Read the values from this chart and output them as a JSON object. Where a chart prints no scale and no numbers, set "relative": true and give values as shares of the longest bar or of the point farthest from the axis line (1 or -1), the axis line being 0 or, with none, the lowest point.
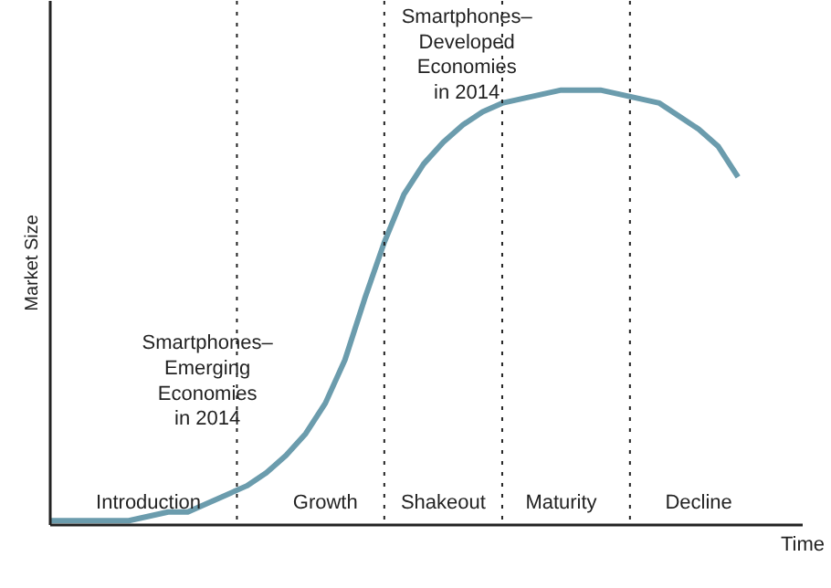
{
  "chart_data": {
    "type": "line",
    "relative": true,
    "xlabel": "Time",
    "ylabel": "Market Size",
    "line_style": "solid",
    "categories": [
      null,
      null,
      null,
      null,
      null,
      "Introduction",
      null,
      null,
      null,
      null,
      null,
      null,
      null,
      null,
      "Growth",
      null,
      null,
      null,
      null,
      null,
      "Shakeout",
      null,
      null,
      null,
      null,
      null,
      "Maturity",
      null,
      null,
      null,
      null,
      null,
      null,
      "Decline",
      null,
      null
    ],
    "series": [
      {
        "color": "#6b9cad",
        "values": [
          0.01,
          0.01,
          0.01,
          0.01,
          0.01,
          0.02,
          0.03,
          0.03,
          0.05,
          0.07,
          0.09,
          0.12,
          0.16,
          0.21,
          0.28,
          0.38,
          0.52,
          0.65,
          0.76,
          0.83,
          0.88,
          0.92,
          0.95,
          0.97,
          0.98,
          0.99,
          1.0,
          1.0,
          1.0,
          0.99,
          0.98,
          0.97,
          0.94,
          0.91,
          0.87,
          0.8
        ]
      }
    ],
    "annotations": [
      "Smartphones–\nEmerging\nEconomies\nin 2014",
      "Smartphones–\nDeveloped\nEconomies\nin 2014"
    ]
  }
}
